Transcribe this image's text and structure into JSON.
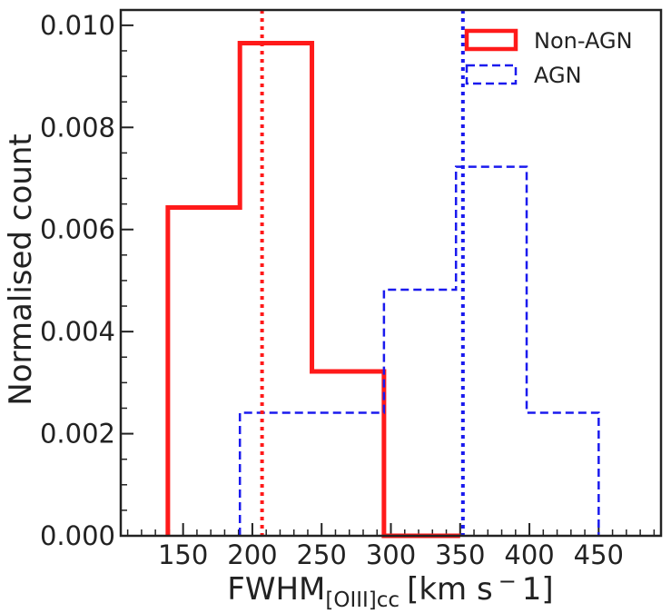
{
  "chart_data": {
    "type": "histogram",
    "xlabel": {
      "main": "FWHM",
      "subscript": "[OIII]cc",
      "unit": "[km s",
      "unit_sup": "−",
      "unit_end": "1]"
    },
    "ylabel": "Normalised count",
    "xlim": [
      105,
      495
    ],
    "ylim": [
      0,
      0.0103
    ],
    "x_ticks": [
      150,
      200,
      250,
      300,
      350,
      400,
      450
    ],
    "y_ticks": [
      0.0,
      0.002,
      0.004,
      0.006,
      0.008,
      0.01
    ],
    "x_tick_labels": [
      "150",
      "200",
      "250",
      "300",
      "350",
      "400",
      "450"
    ],
    "y_tick_labels": [
      "0.000",
      "0.002",
      "0.004",
      "0.006",
      "0.008",
      "0.010"
    ],
    "legend_position": "top-right",
    "series": [
      {
        "name": "Non-AGN",
        "color": "#ff1a1a",
        "style": "solid",
        "bin_edges": [
          139,
          191,
          243,
          295,
          350
        ],
        "values": [
          0.00643,
          0.00965,
          0.00322,
          0.0
        ],
        "reference_line": 207
      },
      {
        "name": "AGN",
        "color": "#1a1aee",
        "style": "dashed",
        "bin_edges": [
          191,
          243,
          295,
          347,
          398,
          450
        ],
        "values": [
          0.00241,
          0.00241,
          0.00482,
          0.00723,
          0.00241
        ],
        "reference_line": 352
      }
    ],
    "grid": false
  }
}
